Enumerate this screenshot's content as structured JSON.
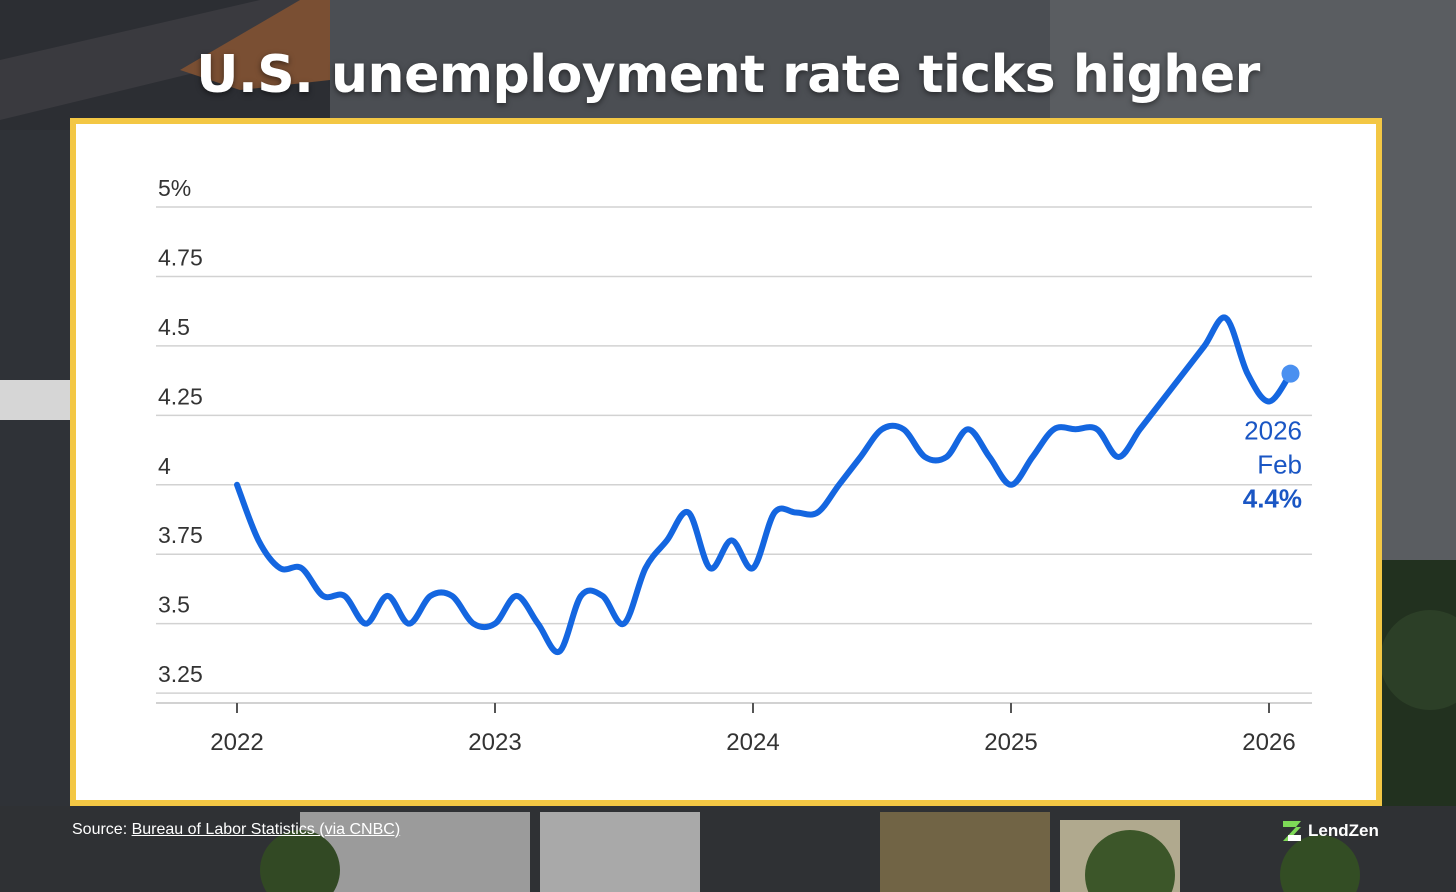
{
  "title": "U.S. unemployment rate ticks higher",
  "source": {
    "prefix": "Source:",
    "link_text": "Bureau of Labor Statistics (via CNBC)"
  },
  "brand": {
    "name": "LendZen",
    "logo_icon": "lendzen-logo-icon"
  },
  "colors": {
    "line": "#1466e0",
    "callout_text": "#1a56c4",
    "end_dot": "#4a90f0",
    "frame": "#f3c744",
    "grid": "#d2d2d2",
    "tick_text": "#333333"
  },
  "chart_data": {
    "type": "line",
    "y_tick_labels": [
      "3.25",
      "3.5",
      "3.75",
      "4",
      "4.25",
      "4.5",
      "4.75",
      "5%"
    ],
    "y_ticks": [
      3.25,
      3.5,
      3.75,
      4,
      4.25,
      4.5,
      4.75,
      5
    ],
    "ylim": [
      3.2,
      5
    ],
    "x_tick_labels": [
      "2022",
      "2023",
      "2024",
      "2025",
      "2026"
    ],
    "grid": true,
    "series": [
      {
        "x": [
          "2022-01",
          "2022-02",
          "2022-03",
          "2022-04",
          "2022-05",
          "2022-06",
          "2022-07",
          "2022-08",
          "2022-09",
          "2022-10",
          "2022-11",
          "2022-12",
          "2023-01",
          "2023-02",
          "2023-03",
          "2023-04",
          "2023-05",
          "2023-06",
          "2023-07",
          "2023-08",
          "2023-09",
          "2023-10",
          "2023-11",
          "2023-12",
          "2024-01",
          "2024-02",
          "2024-03",
          "2024-04",
          "2024-05",
          "2024-06",
          "2024-07",
          "2024-08",
          "2024-09",
          "2024-10",
          "2024-11",
          "2024-12",
          "2025-01",
          "2025-02",
          "2025-03",
          "2025-04",
          "2025-05",
          "2025-06",
          "2025-07",
          "2025-08",
          "2025-09",
          "2025-10",
          "2025-11",
          "2025-12",
          "2026-01",
          "2026-02"
        ],
        "values": [
          4.0,
          3.8,
          3.7,
          3.7,
          3.6,
          3.6,
          3.5,
          3.6,
          3.5,
          3.6,
          3.6,
          3.5,
          3.5,
          3.6,
          3.5,
          3.4,
          3.6,
          3.6,
          3.5,
          3.7,
          3.8,
          3.9,
          3.7,
          3.8,
          3.7,
          3.9,
          3.9,
          3.9,
          4.0,
          4.1,
          4.2,
          4.2,
          4.1,
          4.1,
          4.2,
          4.1,
          4.0,
          4.1,
          4.2,
          4.2,
          4.2,
          4.1,
          4.2,
          4.3,
          4.4,
          4.5,
          4.6,
          4.4,
          4.3,
          4.4
        ]
      }
    ],
    "annotation": {
      "year": "2026",
      "month": "Feb",
      "value": "4.4%"
    }
  }
}
